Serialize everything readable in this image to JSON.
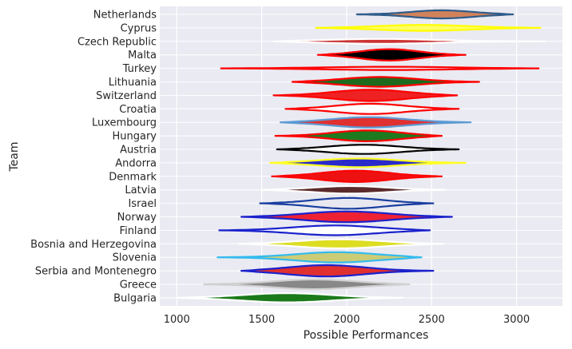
{
  "chart_data": {
    "type": "violin",
    "xlabel": "Possible Performances",
    "ylabel": "Team",
    "xlim": [
      900,
      3270
    ],
    "xticks": [
      1000,
      1500,
      2000,
      2500,
      3000
    ],
    "grid": true,
    "categories": [
      {
        "name": "Netherlands",
        "min": 2060,
        "max": 2980,
        "median": 2560,
        "fill": "#d2825a",
        "line": "#2e5c8a",
        "width": 0.3
      },
      {
        "name": "Cyprus",
        "min": 1820,
        "max": 3140,
        "median": 2450,
        "fill": "#ffff66",
        "line": "#ffff00",
        "width": 0.22
      },
      {
        "name": "Czech Republic",
        "min": 1570,
        "max": 3170,
        "median": 2200,
        "fill": "#cc3333",
        "line": "#ffffff",
        "width": 0.18
      },
      {
        "name": "Malta",
        "min": 1830,
        "max": 2700,
        "median": 2250,
        "fill": "#000000",
        "line": "#ff0000",
        "width": 0.42
      },
      {
        "name": "Turkey",
        "min": 1260,
        "max": 3130,
        "median": 2250,
        "fill": "#e8e8f0",
        "line": "#ff0000",
        "width": 0.12
      },
      {
        "name": "Lithuania",
        "min": 1680,
        "max": 2780,
        "median": 2190,
        "fill": "#1e6b1e",
        "line": "#ff0000",
        "width": 0.36
      },
      {
        "name": "Switzerland",
        "min": 1570,
        "max": 2650,
        "median": 2140,
        "fill": "#ee2222",
        "line": "#ff0000",
        "width": 0.42
      },
      {
        "name": "Croatia",
        "min": 1640,
        "max": 2660,
        "median": 2140,
        "fill": "#ffffff",
        "line": "#ff0000",
        "width": 0.38
      },
      {
        "name": "Luxembourg",
        "min": 1610,
        "max": 2730,
        "median": 2130,
        "fill": "#e03030",
        "line": "#5b9bd5",
        "width": 0.38
      },
      {
        "name": "Hungary",
        "min": 1580,
        "max": 2560,
        "median": 2120,
        "fill": "#1e7a1e",
        "line": "#ff0000",
        "width": 0.4
      },
      {
        "name": "Austria",
        "min": 1590,
        "max": 2660,
        "median": 2100,
        "fill": "#ffffff",
        "line": "#000000",
        "width": 0.34
      },
      {
        "name": "Andorra",
        "min": 1550,
        "max": 2700,
        "median": 2070,
        "fill": "#2a2acc",
        "line": "#ffff22",
        "width": 0.32
      },
      {
        "name": "Denmark",
        "min": 1560,
        "max": 2560,
        "median": 2050,
        "fill": "#ee1111",
        "line": "#ff0000",
        "width": 0.42
      },
      {
        "name": "Latvia",
        "min": 1500,
        "max": 2580,
        "median": 2020,
        "fill": "#5a2a2a",
        "line": "#ffffff",
        "width": 0.28
      },
      {
        "name": "Israel",
        "min": 1490,
        "max": 2510,
        "median": 2010,
        "fill": "#e8e8f0",
        "line": "#1a3fa0",
        "width": 0.4
      },
      {
        "name": "Norway",
        "min": 1380,
        "max": 2620,
        "median": 2000,
        "fill": "#ee2233",
        "line": "#1a22cc",
        "width": 0.4
      },
      {
        "name": "Finland",
        "min": 1250,
        "max": 2490,
        "median": 1930,
        "fill": "#ffffff",
        "line": "#1a22cc",
        "width": 0.36
      },
      {
        "name": "Bosnia and Herzegovina",
        "min": 1360,
        "max": 2570,
        "median": 1960,
        "fill": "#dddd22",
        "line": "#ffffff",
        "width": 0.34
      },
      {
        "name": "Slovenia",
        "min": 1240,
        "max": 2440,
        "median": 1940,
        "fill": "#cccc77",
        "line": "#33bbee",
        "width": 0.38
      },
      {
        "name": "Serbia and Montenegro",
        "min": 1380,
        "max": 2510,
        "median": 1880,
        "fill": "#e03030",
        "line": "#1a22cc",
        "width": 0.42
      },
      {
        "name": "Greece",
        "min": 1160,
        "max": 2370,
        "median": 1810,
        "fill": "#888888",
        "line": "#d0d0d0",
        "width": 0.36
      },
      {
        "name": "Bulgaria",
        "min": 1000,
        "max": 2330,
        "median": 1650,
        "fill": "#1a7a1a",
        "line": "#ffffff",
        "width": 0.34
      }
    ]
  }
}
